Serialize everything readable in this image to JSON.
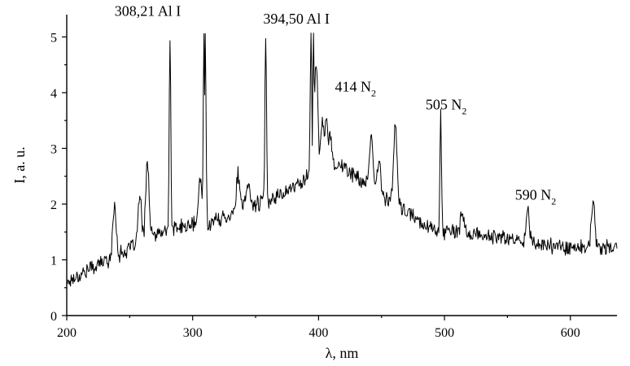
{
  "chart_data": {
    "type": "line",
    "xlabel": "λ, nm",
    "ylabel": "I, a. u.",
    "xlim": [
      200,
      637
    ],
    "ylim": [
      0,
      5.4
    ],
    "x_ticks": [
      200,
      300,
      400,
      500,
      600
    ],
    "y_ticks": [
      0,
      1,
      2,
      3,
      4,
      5
    ],
    "grid": false,
    "legend": "none",
    "line_color": "#000000",
    "series": [
      {
        "x": [
          200,
          205,
          210,
          215,
          220,
          225,
          230,
          235,
          240,
          245,
          250,
          255,
          260,
          265,
          270,
          275,
          280,
          285,
          290,
          295,
          300,
          305,
          310,
          315,
          320,
          325,
          330,
          335,
          340,
          345,
          350,
          355,
          360,
          365,
          370,
          375,
          380,
          385,
          390,
          395,
          400,
          405,
          410,
          415,
          420,
          425,
          430,
          435,
          440,
          445,
          450,
          455,
          460,
          465,
          470,
          475,
          480,
          485,
          490,
          495,
          500,
          505,
          510,
          515,
          520,
          525,
          530,
          535,
          540,
          545,
          550,
          555,
          560,
          565,
          570,
          575,
          580,
          585,
          590,
          595,
          600,
          605,
          610,
          615,
          620,
          625,
          630,
          635
        ],
        "values": [
          0.6,
          0.67,
          0.73,
          0.8,
          0.86,
          0.92,
          0.98,
          1.03,
          1.08,
          1.13,
          1.2,
          1.27,
          1.33,
          1.39,
          1.44,
          1.48,
          1.52,
          1.55,
          1.58,
          1.6,
          1.63,
          1.65,
          1.66,
          1.68,
          1.72,
          1.76,
          1.82,
          1.88,
          1.94,
          1.98,
          2.0,
          2.04,
          2.08,
          2.13,
          2.18,
          2.24,
          2.3,
          2.38,
          2.48,
          2.58,
          2.68,
          2.74,
          2.74,
          2.7,
          2.66,
          2.58,
          2.48,
          2.4,
          2.33,
          2.26,
          2.18,
          2.1,
          2.02,
          1.93,
          1.84,
          1.78,
          1.7,
          1.63,
          1.57,
          1.53,
          1.5,
          1.5,
          1.49,
          1.48,
          1.47,
          1.45,
          1.43,
          1.42,
          1.41,
          1.4,
          1.38,
          1.36,
          1.34,
          1.32,
          1.3,
          1.28,
          1.27,
          1.26,
          1.25,
          1.24,
          1.23,
          1.22,
          1.22,
          1.21,
          1.21,
          1.22,
          1.22,
          1.21
        ]
      }
    ],
    "peaks": [
      {
        "x": 238,
        "y": 1.99
      },
      {
        "x": 258,
        "y": 2.15
      },
      {
        "x": 264,
        "y": 2.8
      },
      {
        "x": 282,
        "y": 5.05
      },
      {
        "x": 306,
        "y": 2.45
      },
      {
        "x": 309,
        "y": 5.05
      },
      {
        "x": 310,
        "y": 5.05
      },
      {
        "x": 336,
        "y": 2.53
      },
      {
        "x": 344,
        "y": 2.38
      },
      {
        "x": 358,
        "y": 5.05
      },
      {
        "x": 394,
        "y": 5.05
      },
      {
        "x": 396,
        "y": 5.05
      },
      {
        "x": 398,
        "y": 4.55
      },
      {
        "x": 403,
        "y": 3.48
      },
      {
        "x": 406,
        "y": 3.58
      },
      {
        "x": 409,
        "y": 3.3
      },
      {
        "x": 442,
        "y": 3.22
      },
      {
        "x": 448,
        "y": 2.76
      },
      {
        "x": 461,
        "y": 3.44
      },
      {
        "x": 497,
        "y": 3.64
      },
      {
        "x": 514,
        "y": 1.85
      },
      {
        "x": 566,
        "y": 1.94
      },
      {
        "x": 618,
        "y": 2.04
      }
    ],
    "annotations": [
      {
        "text": "308,21 Al I",
        "x": 238,
        "y": 5.38
      },
      {
        "text": "394,50 Al I",
        "x": 356,
        "y": 5.24
      },
      {
        "text": "414 N",
        "sub": "2",
        "x": 413,
        "y": 4.02
      },
      {
        "text": "505 N",
        "sub": "2",
        "x": 485,
        "y": 3.7
      },
      {
        "text": "590 N",
        "sub": "2",
        "x": 556,
        "y": 2.08
      }
    ]
  }
}
